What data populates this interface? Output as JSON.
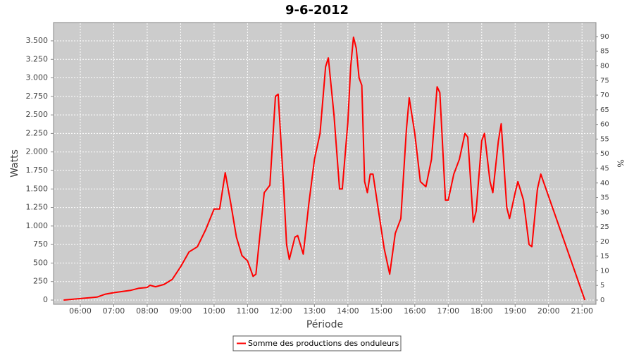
{
  "chart_data": {
    "type": "line",
    "title": "9-6-2012",
    "xlabel": "Période",
    "ylabel": "Watts",
    "y2label": "%",
    "x": [
      "05:30",
      "06:00",
      "06:30",
      "06:45",
      "07:00",
      "07:30",
      "07:45",
      "08:00",
      "08:05",
      "08:15",
      "08:30",
      "08:45",
      "09:00",
      "09:15",
      "09:30",
      "09:45",
      "10:00",
      "10:10",
      "10:20",
      "10:30",
      "10:40",
      "10:50",
      "11:00",
      "11:10",
      "11:15",
      "11:30",
      "11:40",
      "11:50",
      "11:55",
      "12:05",
      "12:10",
      "12:15",
      "12:25",
      "12:30",
      "12:40",
      "12:50",
      "13:00",
      "13:10",
      "13:20",
      "13:25",
      "13:35",
      "13:45",
      "13:50",
      "14:00",
      "14:05",
      "14:10",
      "14:15",
      "14:20",
      "14:25",
      "14:30",
      "14:35",
      "14:40",
      "14:45",
      "14:55",
      "15:05",
      "15:15",
      "15:25",
      "15:35",
      "15:45",
      "15:50",
      "16:00",
      "16:10",
      "16:20",
      "16:30",
      "16:40",
      "16:45",
      "16:55",
      "17:00",
      "17:10",
      "17:20",
      "17:30",
      "17:35",
      "17:45",
      "17:50",
      "18:00",
      "18:05",
      "18:15",
      "18:20",
      "18:30",
      "18:35",
      "18:45",
      "18:50",
      "19:00",
      "19:05",
      "19:15",
      "19:25",
      "19:30",
      "19:40",
      "19:46",
      "21:05"
    ],
    "series": [
      {
        "name": "Somme des productions des onduleurs",
        "color": "#ff0000",
        "values": [
          0,
          20,
          40,
          80,
          100,
          130,
          160,
          170,
          200,
          180,
          210,
          280,
          450,
          650,
          720,
          950,
          1230,
          1230,
          1720,
          1300,
          850,
          600,
          530,
          320,
          350,
          1450,
          1550,
          2750,
          2780,
          1500,
          750,
          550,
          850,
          870,
          620,
          1300,
          1900,
          2250,
          3150,
          3270,
          2500,
          1500,
          1500,
          2400,
          3150,
          3550,
          3400,
          3000,
          2900,
          1600,
          1450,
          1700,
          1700,
          1200,
          700,
          350,
          900,
          1100,
          2300,
          2730,
          2250,
          1600,
          1530,
          1900,
          2880,
          2800,
          1350,
          1350,
          1700,
          1900,
          2250,
          2200,
          1050,
          1200,
          2150,
          2250,
          1600,
          1450,
          2150,
          2380,
          1250,
          1100,
          1450,
          1600,
          1350,
          750,
          720,
          1500,
          1700,
          0
        ]
      }
    ],
    "xlim": [
      "05:12",
      "21:25"
    ],
    "xticks": [
      "06:00",
      "07:00",
      "08:00",
      "09:00",
      "10:00",
      "11:00",
      "12:00",
      "13:00",
      "14:00",
      "15:00",
      "16:00",
      "17:00",
      "18:00",
      "19:00",
      "20:00",
      "21:00"
    ],
    "ylim": [
      -57,
      3747
    ],
    "yticks": [
      0,
      {
        "value": 250,
        "label": "250"
      },
      {
        "value": 500,
        "label": "500"
      },
      {
        "value": 750,
        "label": "750"
      },
      {
        "value": 1000,
        "label": "1.000"
      },
      {
        "value": 1250,
        "label": "1.250"
      },
      {
        "value": 1500,
        "label": "1.500"
      },
      {
        "value": 1750,
        "label": "1.750"
      },
      {
        "value": 2000,
        "label": "2.000"
      },
      {
        "value": 2250,
        "label": "2.250"
      },
      {
        "value": 2500,
        "label": "2.500"
      },
      {
        "value": 2750,
        "label": "2.750"
      },
      {
        "value": 3000,
        "label": "3.000"
      },
      {
        "value": 3250,
        "label": "3.250"
      },
      {
        "value": 3500,
        "label": "3.500"
      }
    ],
    "y2lim": [
      -1.44,
      94.8
    ],
    "y2ticks": [
      0,
      5,
      10,
      15,
      20,
      25,
      30,
      35,
      40,
      45,
      50,
      55,
      60,
      65,
      70,
      75,
      80,
      85,
      90
    ],
    "grid": true,
    "legend": "bottom"
  }
}
